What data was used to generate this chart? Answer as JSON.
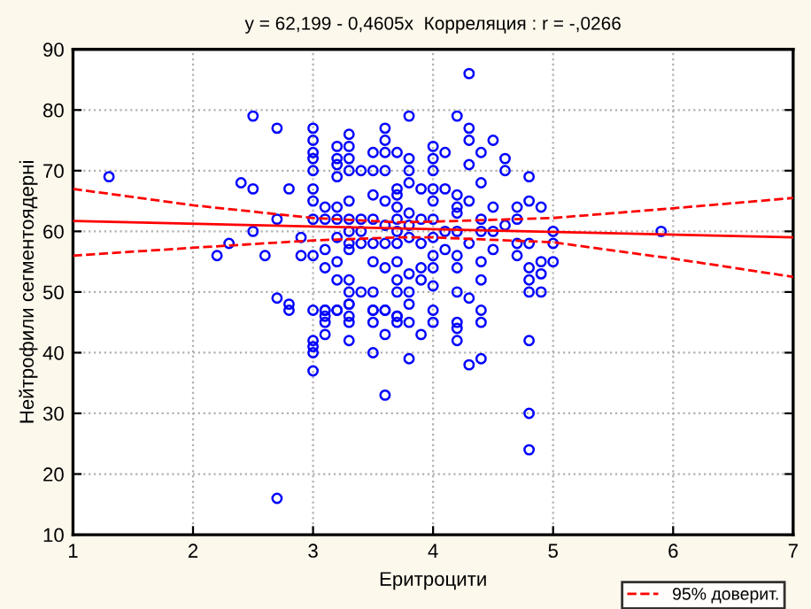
{
  "chart_data": {
    "type": "scatter",
    "title": "y = 62,199 - 0,4605x  Корреляция : r = -,0266",
    "xlabel": "Еритроцити",
    "ylabel": "Нейтрофили сегментоядерні",
    "xlim": [
      1,
      7
    ],
    "ylim": [
      10,
      90
    ],
    "xticks": [
      1,
      2,
      3,
      4,
      5,
      6,
      7
    ],
    "yticks": [
      10,
      20,
      30,
      40,
      50,
      60,
      70,
      80,
      90
    ],
    "grid": true,
    "legend": "bottom right",
    "series": [
      {
        "marker": "circle",
        "color": "#0000ff",
        "x": [
          1.3,
          2.5,
          2.7,
          2.4,
          2.5,
          2.8,
          2.7,
          2.5,
          2.3,
          2.2,
          2.6,
          2.9,
          3.0,
          2.9,
          2.7,
          2.8,
          2.8,
          3.0,
          3.0,
          3.0,
          3.0,
          3.0,
          3.0,
          3.0,
          3.0,
          3.0,
          3.1,
          3.1,
          3.1,
          3.1,
          3.1,
          3.1,
          3.2,
          3.2,
          3.2,
          3.2,
          3.2,
          3.2,
          3.2,
          3.2,
          3.2,
          3.2,
          3.3,
          3.3,
          3.3,
          3.3,
          3.3,
          3.3,
          3.3,
          3.3,
          3.3,
          3.3,
          3.3,
          3.3,
          3.3,
          3.4,
          3.4,
          3.4,
          3.4,
          3.4,
          3.5,
          3.5,
          3.5,
          3.5,
          3.5,
          3.5,
          3.5,
          3.5,
          3.6,
          3.6,
          3.6,
          3.6,
          3.6,
          3.6,
          3.6,
          3.6,
          3.6,
          3.7,
          3.7,
          3.7,
          3.7,
          3.7,
          3.7,
          3.7,
          3.7,
          3.7,
          3.7,
          3.7,
          3.8,
          3.8,
          3.8,
          3.8,
          3.8,
          3.8,
          3.8,
          3.8,
          3.8,
          3.8,
          3.9,
          3.9,
          3.9,
          3.9,
          3.9,
          4.0,
          4.0,
          4.0,
          4.0,
          4.0,
          4.0,
          4.0,
          4.0,
          4.0,
          4.0,
          4.0,
          4.1,
          4.1,
          4.1,
          4.1,
          4.2,
          4.2,
          4.2,
          4.2,
          4.2,
          4.2,
          4.2,
          4.2,
          4.3,
          4.3,
          4.3,
          4.3,
          4.3,
          4.3,
          4.3,
          4.4,
          4.4,
          4.4,
          4.4,
          4.4,
          4.4,
          4.5,
          4.5,
          4.5,
          4.5,
          4.6,
          4.6,
          4.6,
          4.7,
          4.7,
          4.7,
          4.7,
          4.8,
          4.8,
          4.8,
          4.8,
          4.8,
          4.8,
          4.9,
          4.9,
          4.9,
          4.9,
          5.0,
          5.0,
          5.0,
          5.9,
          2.7,
          3.0,
          3.0,
          3.0,
          3.0,
          3.1,
          3.1,
          3.1,
          3.2,
          3.3,
          3.3,
          3.3,
          3.5,
          3.5,
          3.5,
          3.6,
          3.6,
          3.6,
          3.7,
          3.7,
          3.8,
          3.8,
          3.9,
          4.0,
          4.2,
          4.2,
          4.2,
          4.3,
          4.4,
          4.4,
          4.4,
          4.8,
          4.8,
          4.8
        ],
        "values": [
          69,
          79,
          77,
          68,
          67,
          67,
          62,
          60,
          58,
          56,
          56,
          56,
          56,
          59,
          49,
          48,
          47,
          77,
          75,
          73,
          72,
          70,
          67,
          65,
          62,
          47,
          64,
          62,
          57,
          54,
          47,
          46,
          74,
          72,
          71,
          69,
          64,
          62,
          59,
          55,
          52,
          47,
          76,
          74,
          72,
          70,
          65,
          62,
          60,
          58,
          57,
          52,
          50,
          48,
          46,
          70,
          62,
          60,
          58,
          50,
          73,
          70,
          66,
          62,
          58,
          55,
          50,
          47,
          77,
          75,
          73,
          70,
          65,
          61,
          58,
          54,
          47,
          73,
          67,
          66,
          64,
          62,
          60,
          58,
          55,
          52,
          50,
          46,
          79,
          72,
          70,
          68,
          63,
          61,
          59,
          53,
          50,
          48,
          67,
          62,
          58,
          54,
          52,
          74,
          72,
          70,
          67,
          65,
          62,
          59,
          56,
          54,
          51,
          47,
          73,
          67,
          60,
          57,
          79,
          66,
          64,
          63,
          60,
          56,
          54,
          50,
          86,
          77,
          75,
          71,
          65,
          58,
          49,
          73,
          68,
          62,
          60,
          55,
          52,
          75,
          64,
          60,
          57,
          72,
          70,
          61,
          64,
          62,
          58,
          56,
          69,
          65,
          58,
          54,
          52,
          50,
          64,
          55,
          53,
          50,
          60,
          58,
          55,
          60,
          16,
          42,
          41,
          40,
          37,
          47,
          45,
          43,
          47,
          48,
          45,
          42,
          47,
          45,
          40,
          47,
          43,
          33,
          46,
          45,
          45,
          39,
          43,
          45,
          44,
          45,
          42,
          38,
          47,
          45,
          39,
          42,
          30,
          24
        ]
      },
      {
        "type": "line",
        "color": "#ff0000",
        "line_style": "solid",
        "x": [
          1,
          7
        ],
        "values": [
          61.7,
          59.0
        ]
      },
      {
        "type": "line",
        "name": "95% доверит.",
        "color": "#ff0000",
        "line_style": "dashed",
        "x": [
          1,
          2,
          3,
          3.7,
          4,
          5,
          6,
          7
        ],
        "values": [
          67,
          64.3,
          62.2,
          61.5,
          61.6,
          62.2,
          63.8,
          65.5
        ]
      },
      {
        "type": "line",
        "color": "#ff0000",
        "line_style": "dashed",
        "x": [
          1,
          2,
          3,
          3.7,
          4,
          5,
          6,
          7
        ],
        "values": [
          56,
          57.3,
          58.5,
          59,
          59,
          58.2,
          55.5,
          52.5
        ]
      }
    ]
  }
}
